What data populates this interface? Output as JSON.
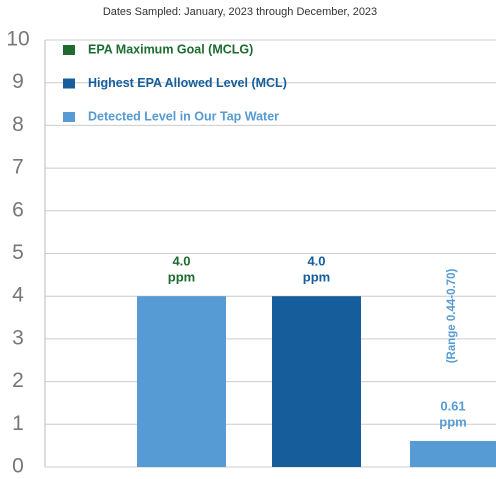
{
  "chart_data": {
    "type": "bar",
    "subtitle": "Dates Sampled: January, 2023 through December, 2023",
    "categories": [
      null,
      null,
      null
    ],
    "values": [
      4,
      4,
      0.61
    ],
    "value_labels": [
      "4.0",
      "4.0",
      "0.61"
    ],
    "unit_label": "ppm",
    "bar_colors": [
      "#579bd4",
      "#165d9b",
      "#579bd4"
    ],
    "label_colors": [
      "#1e6b30",
      "#165d9b",
      "#579bd4"
    ],
    "annotation": "(Range 0.44-0.70)",
    "legend": [
      {
        "label": "EPA Maximum Goal (MCLG)",
        "color": "#1e6b30"
      },
      {
        "label": "Highest EPA Allowed Level (MCL)",
        "color": "#165d9b"
      },
      {
        "label": "Detected Level in Our Tap Water",
        "color": "#579bd4"
      }
    ],
    "ylim": [
      0,
      10
    ],
    "yticks": [
      0,
      1,
      2,
      3,
      4,
      5,
      6,
      7,
      8,
      9,
      10
    ],
    "grid": true
  }
}
